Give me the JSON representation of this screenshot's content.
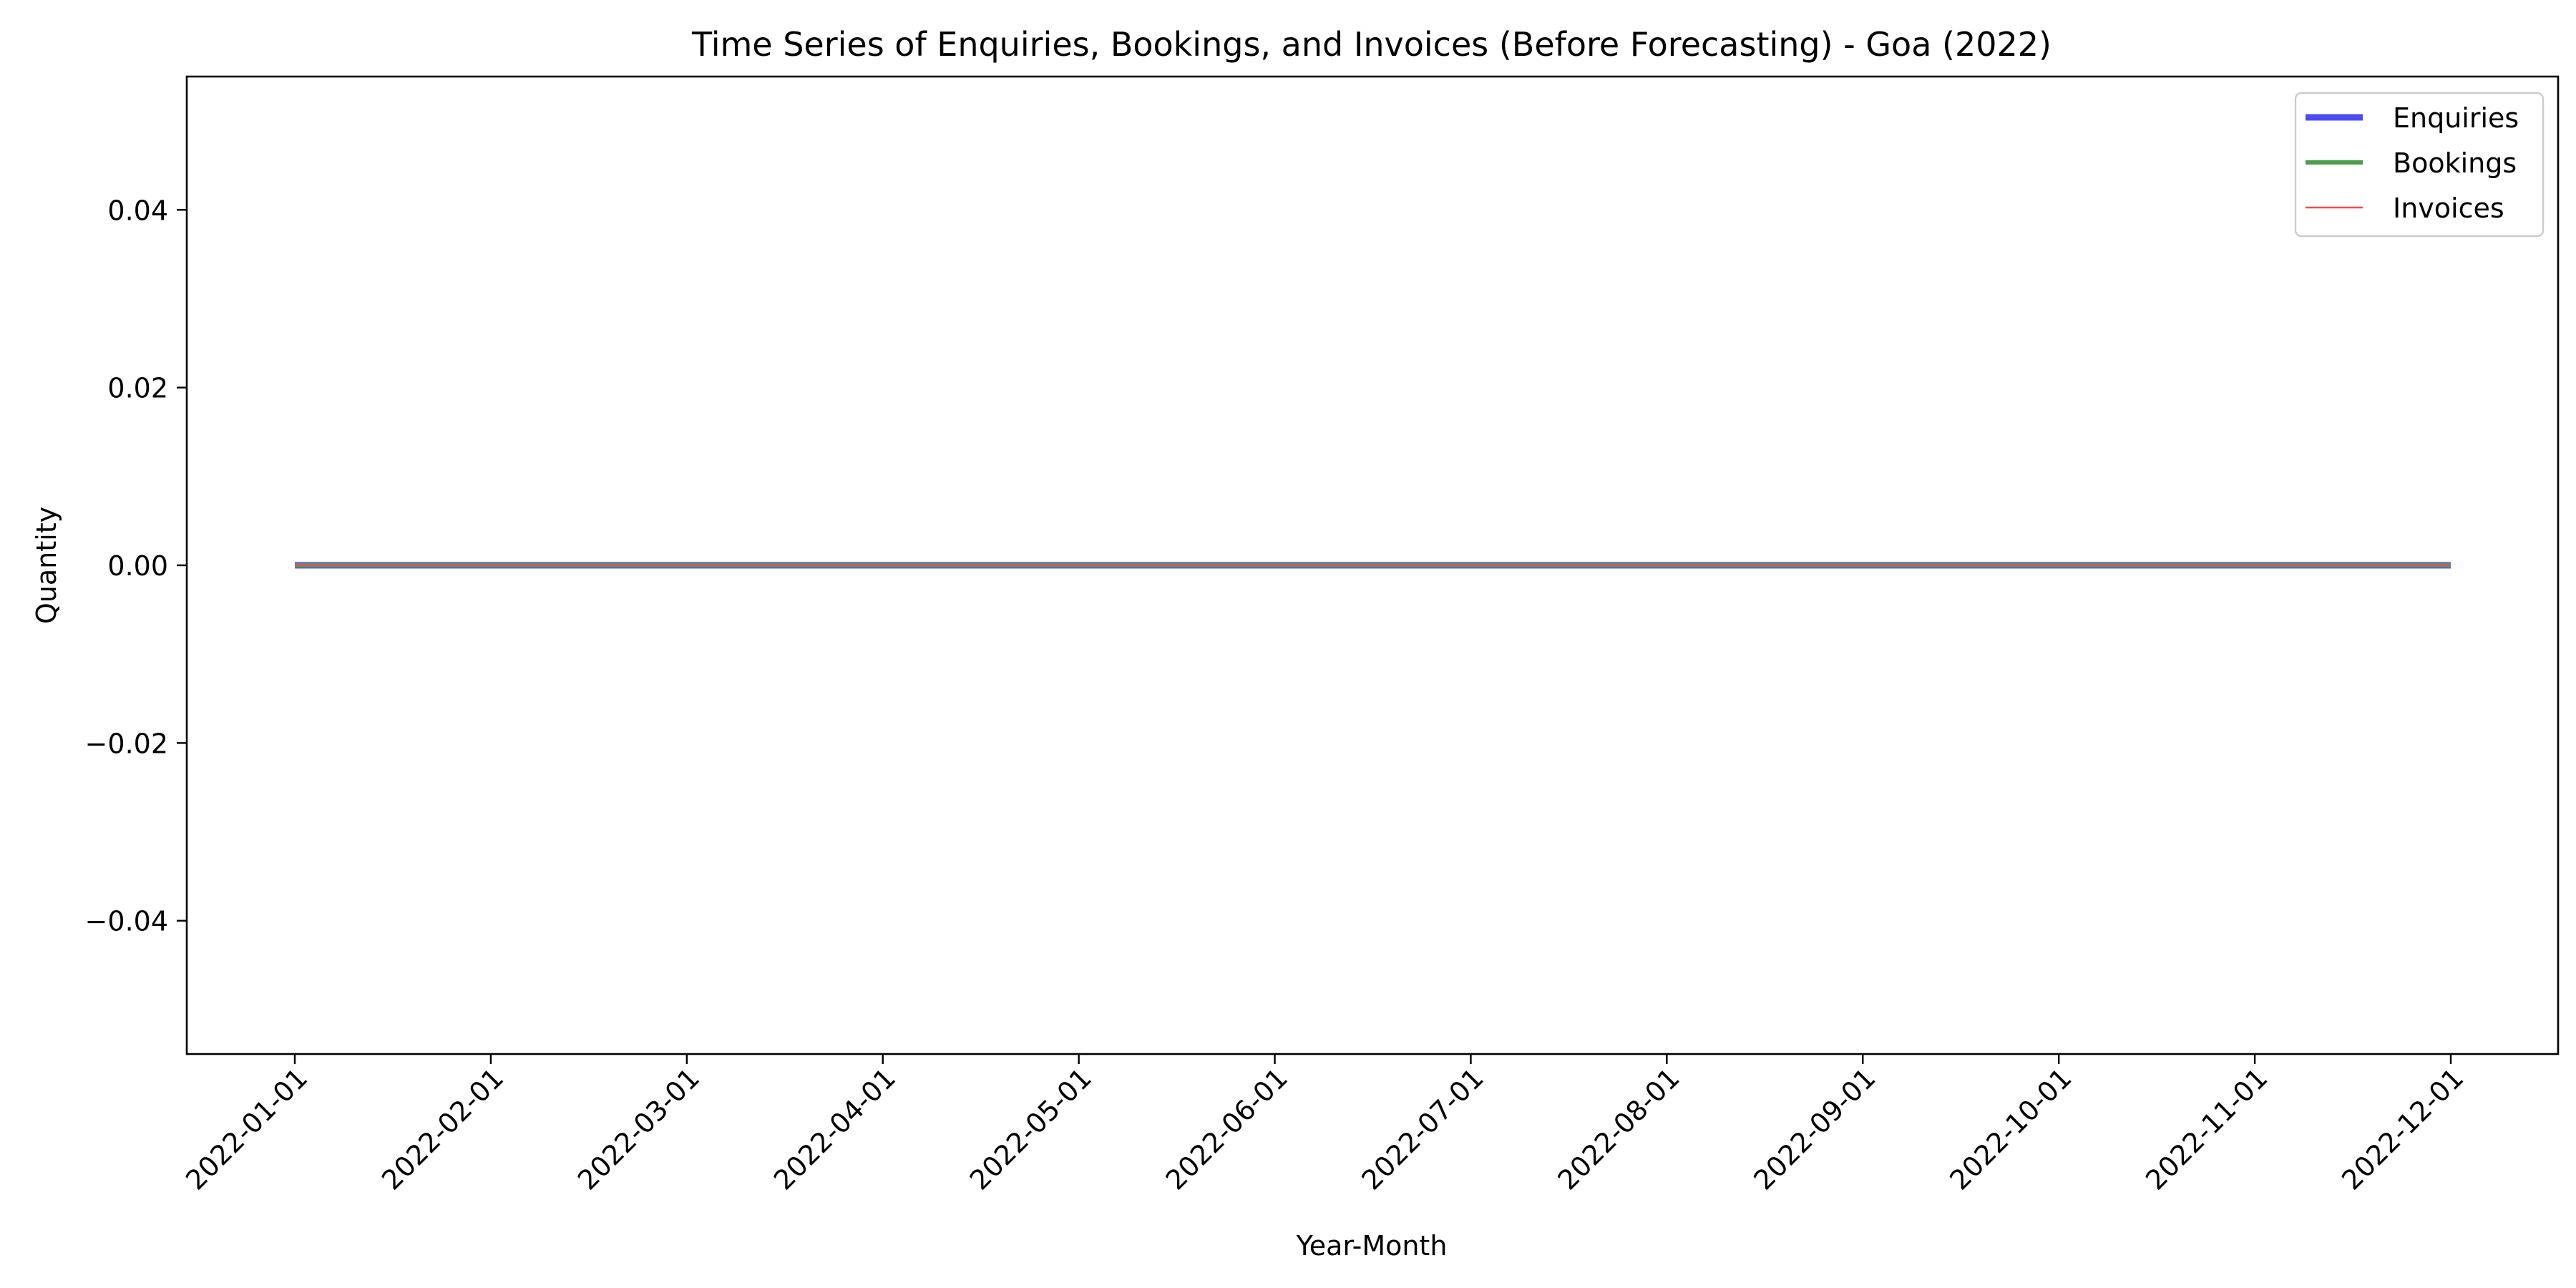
{
  "chart_data": {
    "type": "line",
    "title": "Time Series of Enquiries, Bookings, and Invoices (Before Forecasting) - Goa (2022)",
    "xlabel": "Year-Month",
    "ylabel": "Quantity",
    "x": [
      "2022-01-01",
      "2022-02-01",
      "2022-03-01",
      "2022-04-01",
      "2022-05-01",
      "2022-06-01",
      "2022-07-01",
      "2022-08-01",
      "2022-09-01",
      "2022-10-01",
      "2022-11-01",
      "2022-12-01"
    ],
    "ylim": [
      -0.055,
      0.055
    ],
    "yticks": [
      -0.04,
      -0.02,
      0.0,
      0.02,
      0.04
    ],
    "ytick_labels": [
      "−0.04",
      "−0.02",
      "0.00",
      "0.02",
      "0.04"
    ],
    "grid": false,
    "legend_position": "top-right",
    "series": [
      {
        "name": "Enquiries",
        "color": "#4b4bf5",
        "values": [
          0,
          0,
          0,
          0,
          0,
          0,
          0,
          0,
          0,
          0,
          0,
          0
        ]
      },
      {
        "name": "Bookings",
        "color": "#4c9e4c",
        "values": [
          0,
          0,
          0,
          0,
          0,
          0,
          0,
          0,
          0,
          0,
          0,
          0
        ]
      },
      {
        "name": "Invoices",
        "color": "#ef4c4c",
        "values": [
          0,
          0,
          0,
          0,
          0,
          0,
          0,
          0,
          0,
          0,
          0,
          0
        ]
      }
    ]
  }
}
